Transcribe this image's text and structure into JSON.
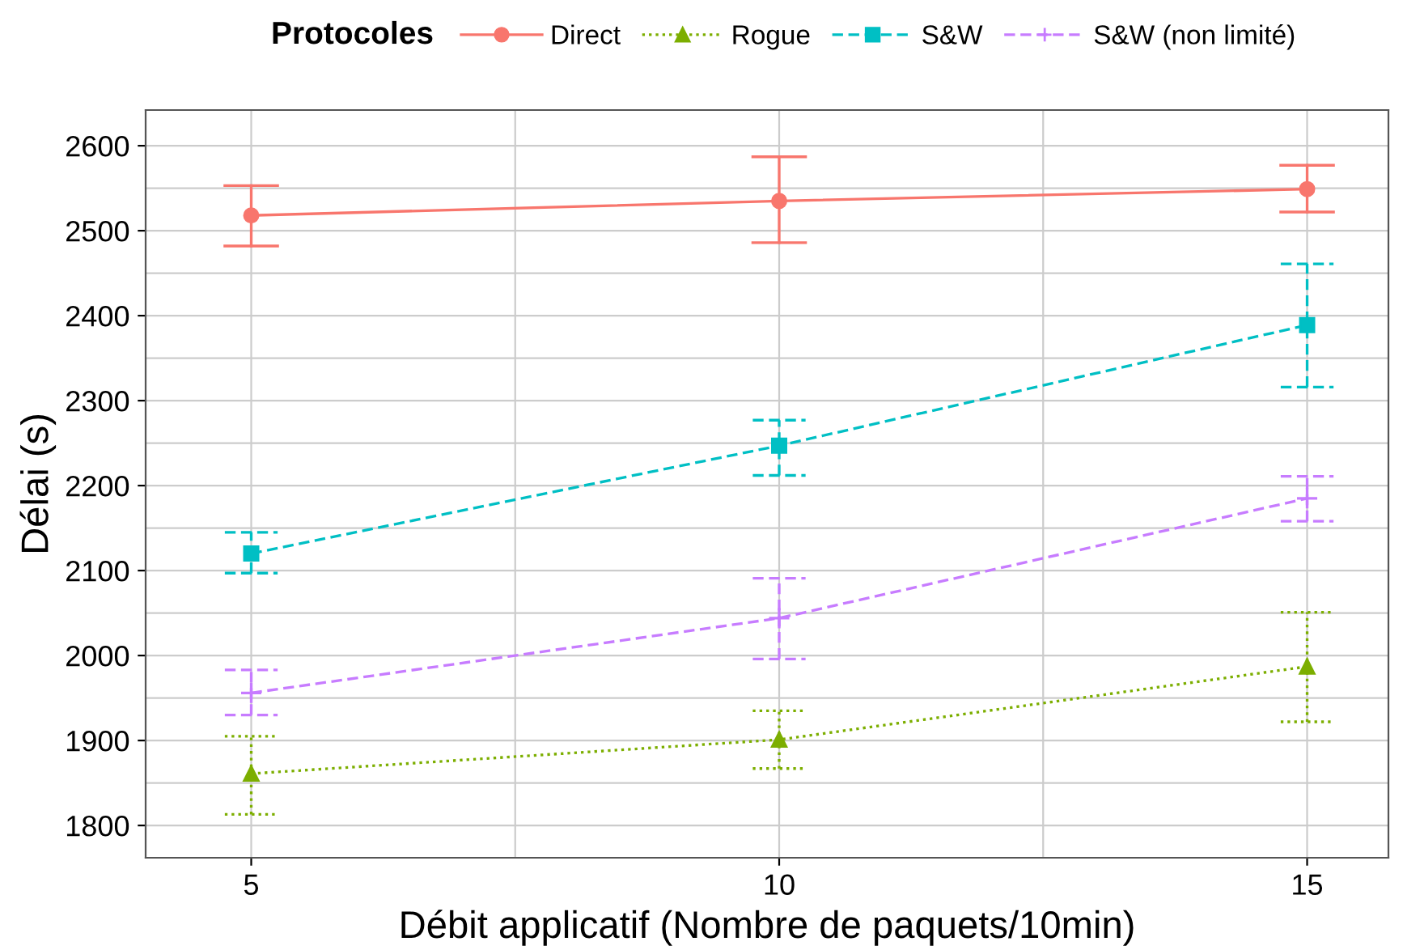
{
  "chart_data": {
    "type": "line",
    "xlabel": "Débit applicatif (Nombre de paquets/10min)",
    "ylabel": "Délai (s)",
    "legend_title": "Protocoles",
    "legend": "top",
    "x": [
      5,
      10,
      15
    ],
    "xlim": [
      4.0,
      15.77
    ],
    "xticks": [
      5,
      10,
      15
    ],
    "ylim": [
      1762,
      2642
    ],
    "yticks": [
      1800,
      1900,
      2000,
      2100,
      2200,
      2300,
      2400,
      2500,
      2600
    ],
    "grid": true,
    "series": [
      {
        "name": "Direct",
        "color": "#f8766d",
        "marker": "circle",
        "line_style": "solid",
        "values": [
          2518,
          2535,
          2549
        ],
        "errors": [
          [
            2482,
            2553
          ],
          [
            2486,
            2587
          ],
          [
            2522,
            2577
          ]
        ]
      },
      {
        "name": "Rogue",
        "color": "#7cae00",
        "marker": "triangle",
        "line_style": "dotted",
        "values": [
          1861,
          1901,
          1987
        ],
        "errors": [
          [
            1813,
            1905
          ],
          [
            1867,
            1935
          ],
          [
            1922,
            2051
          ]
        ]
      },
      {
        "name": "S&W",
        "color": "#00bfc4",
        "marker": "square",
        "line_style": "dashed",
        "values": [
          2120,
          2247,
          2389
        ],
        "errors": [
          [
            2097,
            2145
          ],
          [
            2212,
            2277
          ],
          [
            2316,
            2461
          ]
        ]
      },
      {
        "name": "S&W (non limité)",
        "color": "#c77cff",
        "marker": "cross",
        "line_style": "dashed",
        "values": [
          1956,
          2044,
          2185
        ],
        "errors": [
          [
            1930,
            1983
          ],
          [
            1996,
            2091
          ],
          [
            2158,
            2211
          ]
        ]
      }
    ]
  }
}
